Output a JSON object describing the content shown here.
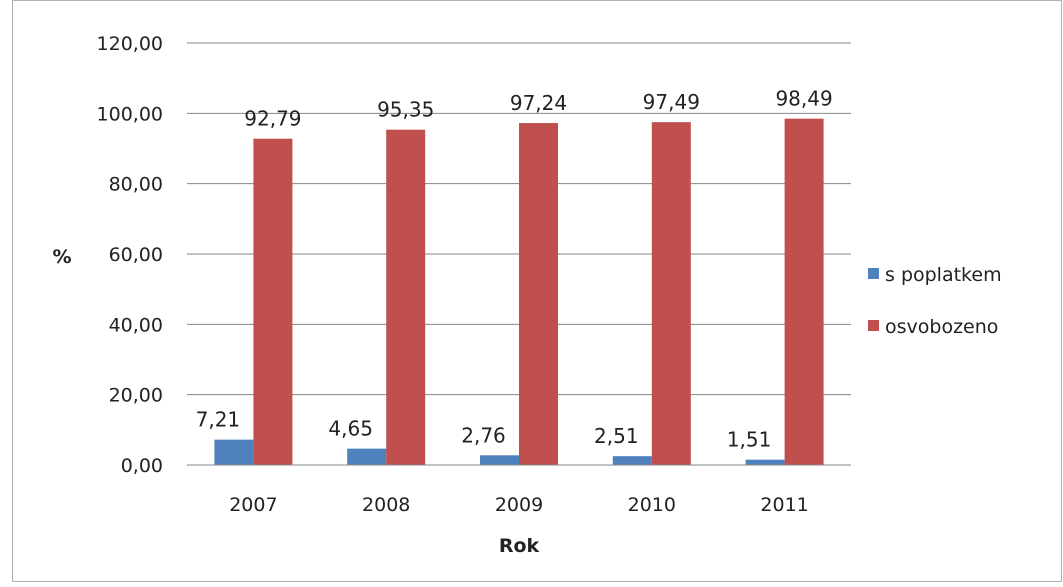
{
  "chart_data": {
    "type": "bar",
    "title": "",
    "xlabel": "Rok",
    "ylabel": "%",
    "categories": [
      "2007",
      "2008",
      "2009",
      "2010",
      "2011"
    ],
    "series": [
      {
        "name": "s poplatkem",
        "values": [
          7.21,
          4.65,
          2.76,
          2.51,
          1.51
        ],
        "labels": [
          "7,21",
          "4,65",
          "2,76",
          "2,51",
          "1,51"
        ],
        "color": "#4F81BD"
      },
      {
        "name": "osvobozeno",
        "values": [
          92.79,
          95.35,
          97.24,
          97.49,
          98.49
        ],
        "labels": [
          "92,79",
          "95,35",
          "97,24",
          "97,49",
          "98,49"
        ],
        "color": "#C0504D"
      }
    ],
    "yticks": [
      "0,00",
      "20,00",
      "40,00",
      "60,00",
      "80,00",
      "100,00",
      "120,00"
    ],
    "ylim": [
      0,
      120
    ],
    "grid": true,
    "legend_position": "right"
  }
}
